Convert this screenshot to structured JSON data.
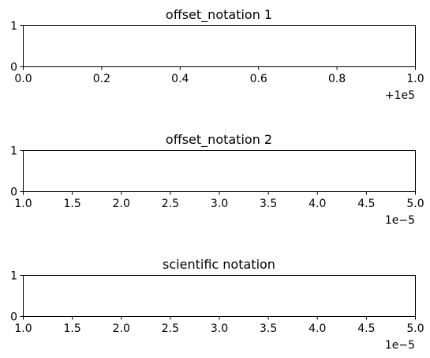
{
  "chart_data": [
    {
      "type": "line",
      "title": "offset_notation 1",
      "xlim": [
        100000.0,
        100001.0
      ],
      "ylim": [
        0,
        1
      ],
      "xticks": [
        "0.0",
        "0.2",
        "0.4",
        "0.6",
        "0.8",
        "1.0"
      ],
      "yticks": [
        "0",
        "1"
      ],
      "x_offset_text": "+1e5",
      "grid": false,
      "series": []
    },
    {
      "type": "line",
      "title": "offset_notation 2",
      "xlim": [
        1e-05,
        5e-05
      ],
      "ylim": [
        0,
        1
      ],
      "xticks": [
        "1.0",
        "1.5",
        "2.0",
        "2.5",
        "3.0",
        "3.5",
        "4.0",
        "4.5",
        "5.0"
      ],
      "yticks": [
        "0",
        "1"
      ],
      "x_offset_text": "1e−5",
      "grid": false,
      "series": []
    },
    {
      "type": "line",
      "title": "scientific notation",
      "xlim": [
        1e-05,
        5e-05
      ],
      "ylim": [
        0,
        1
      ],
      "xticks": [
        "1.0",
        "1.5",
        "2.0",
        "2.5",
        "3.0",
        "3.5",
        "4.0",
        "4.5",
        "5.0"
      ],
      "yticks": [
        "0",
        "1"
      ],
      "x_offset_text": "1e−5",
      "grid": false,
      "series": []
    }
  ]
}
